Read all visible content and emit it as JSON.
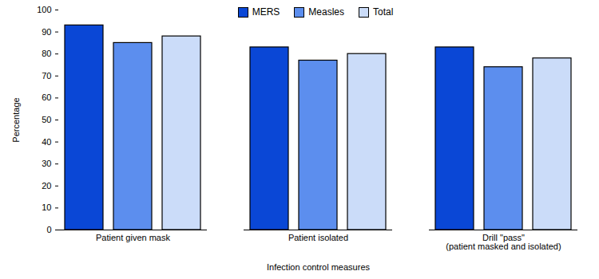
{
  "chart_data": {
    "type": "bar",
    "categories": [
      "Patient given mask",
      "Patient isolated",
      "Drill \"pass\"\n(patient masked and isolated)"
    ],
    "series": [
      {
        "name": "MERS",
        "color": "#0a47d6",
        "values": [
          93,
          83,
          83
        ]
      },
      {
        "name": "Measles",
        "color": "#5c8eee",
        "values": [
          85,
          77,
          74
        ]
      },
      {
        "name": "Total",
        "color": "#cbdcf9",
        "values": [
          88,
          80,
          78
        ]
      }
    ],
    "x_label": "Infection control measures",
    "y_label": "Percentage",
    "ylim": [
      0,
      100
    ],
    "yticks": [
      0,
      10,
      20,
      30,
      40,
      50,
      60,
      70,
      80,
      90,
      100
    ],
    "grid": false,
    "legend": "top"
  }
}
